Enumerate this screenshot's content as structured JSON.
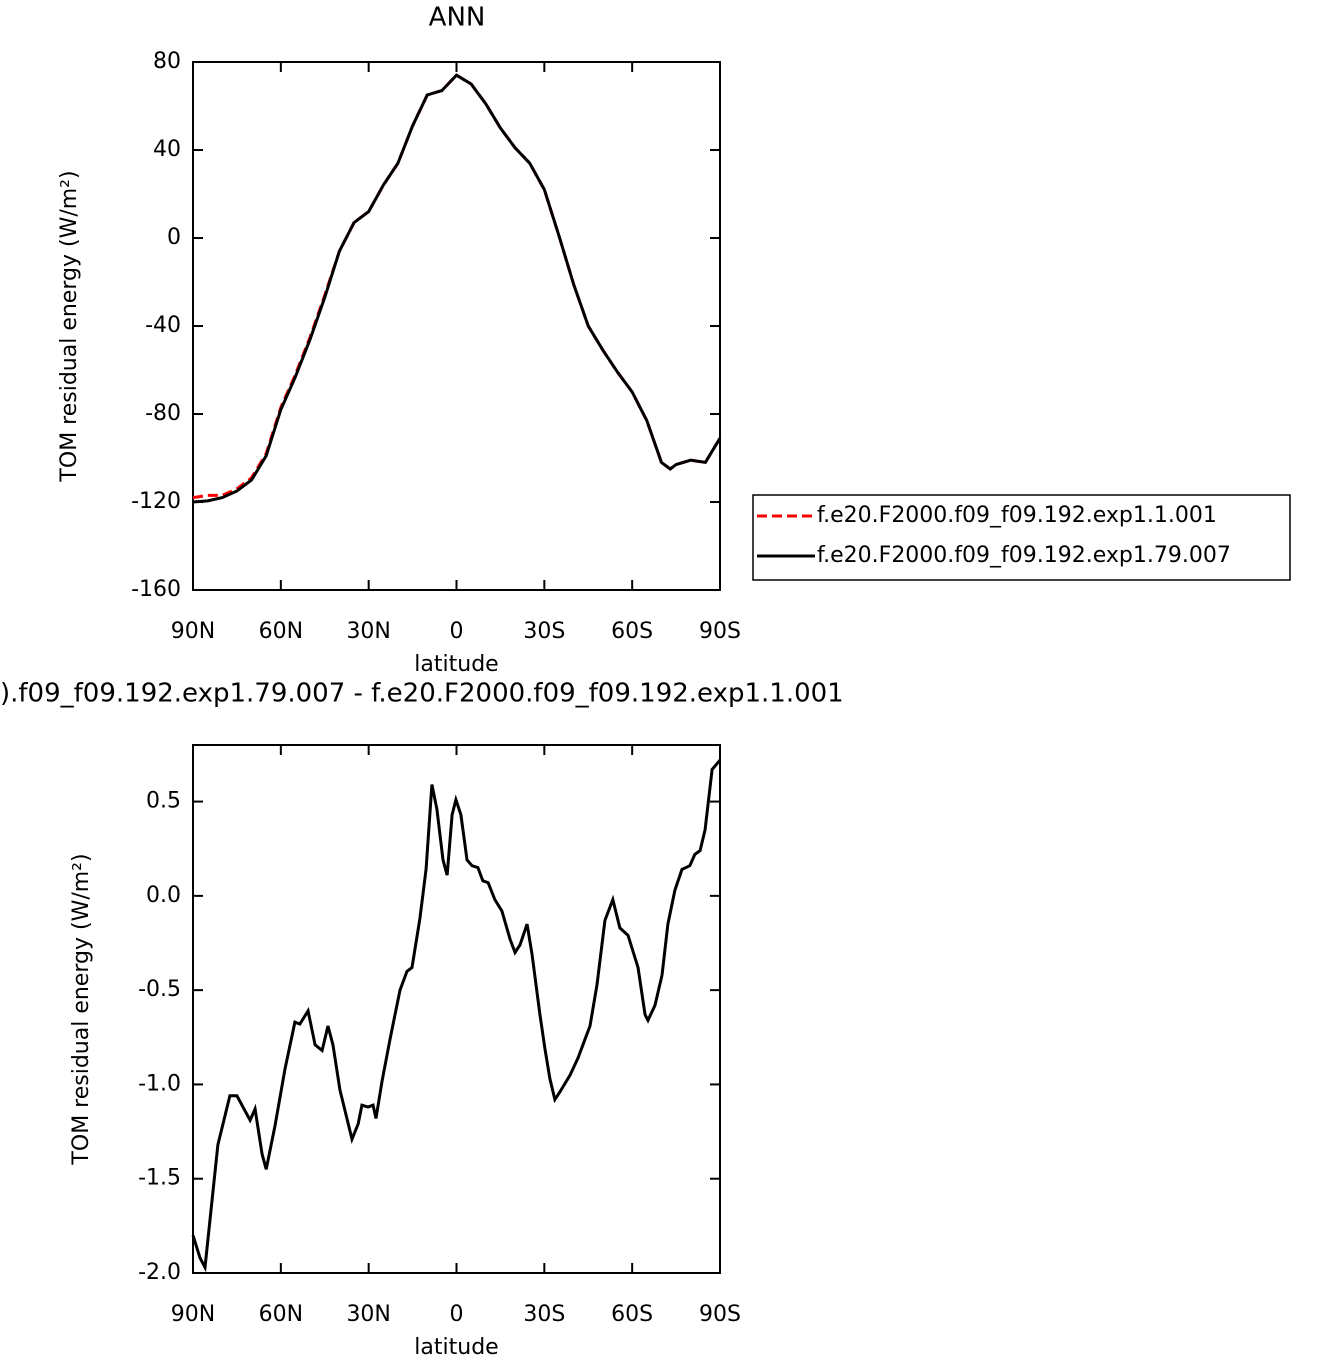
{
  "chart_data": [
    {
      "type": "line",
      "title": "ANN",
      "x_label": "latitude",
      "y_label": "TOM residual energy (W/m²)",
      "x": [
        90,
        85,
        80,
        75,
        70,
        65,
        60,
        55,
        50,
        45,
        40,
        35,
        30,
        25,
        20,
        15,
        10,
        5,
        0,
        -5,
        -10,
        -15,
        -20,
        -25,
        -30,
        -35,
        -40,
        -45,
        -50,
        -55,
        -60,
        -65,
        -70,
        -73,
        -75,
        -80,
        -85,
        -90
      ],
      "series": [
        {
          "name": "f.e20.F2000.f09_f09.192.exp1.1.001",
          "color": "#ff0000",
          "dashed": true,
          "values": [
            -118,
            -117,
            -117,
            -114,
            -109,
            -98,
            -77,
            -62,
            -45,
            -26,
            -6,
            7,
            12,
            24,
            34,
            51,
            65,
            67,
            74,
            70,
            61,
            50,
            41,
            34,
            22,
            1,
            -21,
            -40,
            -51,
            -61,
            -70,
            -83,
            -102,
            -105,
            -103,
            -101,
            -102,
            -91
          ]
        },
        {
          "name": "f.e20.F2000.f09_f09.192.exp1.79.007",
          "color": "#000000",
          "dashed": false,
          "values": [
            -120,
            -119.5,
            -118,
            -115,
            -110,
            -99,
            -78,
            -63,
            -46,
            -27,
            -6,
            7,
            12,
            24,
            34,
            51,
            65,
            67,
            74,
            70,
            61,
            50,
            41,
            34,
            22,
            1,
            -21,
            -40,
            -51,
            -61,
            -70,
            -83,
            -102,
            -105,
            -103,
            -101,
            -102,
            -91
          ]
        }
      ],
      "xlim": [
        90,
        -90
      ],
      "xticks": [
        {
          "value": 90,
          "label": "90N"
        },
        {
          "value": 60,
          "label": "60N"
        },
        {
          "value": 30,
          "label": "30N"
        },
        0,
        {
          "value": -30,
          "label": "30S"
        },
        {
          "value": -60,
          "label": "60S"
        },
        {
          "value": -90,
          "label": "90S"
        }
      ],
      "ylim": [
        -160,
        80
      ],
      "yticks": [
        -160,
        -120,
        -80,
        -40,
        0,
        40,
        80
      ],
      "legend": "right"
    },
    {
      "type": "line",
      "title": ").f09_f09.192.exp1.79.007 - f.e20.F2000.f09_f09.192.exp1.1.001",
      "x_label": "latitude",
      "y_label": "TOM residual energy (W/m²)",
      "x": [
        90,
        87.6,
        85.9,
        81.5,
        77.4,
        75,
        70.5,
        68.8,
        66.4,
        65,
        62,
        58.6,
        55.2,
        53.5,
        50.7,
        48.3,
        45.9,
        43.9,
        42.2,
        39.8,
        35.7,
        33.6,
        32.3,
        30.2,
        28.5,
        27.5,
        25.4,
        22.7,
        19.3,
        16.9,
        15.2,
        12.5,
        10.4,
        8.4,
        6.7,
        4.6,
        3.2,
        1.5,
        0.2,
        -1.5,
        -3.6,
        -5.3,
        -7.3,
        -9,
        -10.8,
        -13.1,
        -15.5,
        -18.3,
        -20,
        -21.7,
        -24.1,
        -25.8,
        -28.5,
        -30.2,
        -31.9,
        -33.6,
        -35.3,
        -38.8,
        -41.5,
        -43.9,
        -45.6,
        -48,
        -50.7,
        -53.4,
        -55.8,
        -58.6,
        -62,
        -64.4,
        -65.4,
        -67.8,
        -70.2,
        -72.2,
        -74.6,
        -77,
        -79.7,
        -81.4,
        -83.2,
        -84.9,
        -87.3,
        -90
      ],
      "series": [
        {
          "color": "#000000",
          "dashed": false,
          "values": [
            -1.8,
            -1.92,
            -1.97,
            -1.32,
            -1.06,
            -1.06,
            -1.19,
            -1.13,
            -1.37,
            -1.45,
            -1.22,
            -0.92,
            -0.67,
            -0.68,
            -0.61,
            -0.79,
            -0.82,
            -0.69,
            -0.79,
            -1.03,
            -1.29,
            -1.21,
            -1.11,
            -1.12,
            -1.11,
            -1.18,
            -0.98,
            -0.76,
            -0.5,
            -0.4,
            -0.38,
            -0.12,
            0.14,
            0.59,
            0.46,
            0.19,
            0.11,
            0.43,
            0.51,
            0.43,
            0.19,
            0.16,
            0.15,
            0.08,
            0.07,
            -0.02,
            -0.08,
            -0.23,
            -0.3,
            -0.26,
            -0.15,
            -0.31,
            -0.63,
            -0.81,
            -0.97,
            -1.08,
            -1.04,
            -0.95,
            -0.86,
            -0.76,
            -0.69,
            -0.47,
            -0.13,
            -0.02,
            -0.17,
            -0.21,
            -0.38,
            -0.63,
            -0.66,
            -0.58,
            -0.42,
            -0.15,
            0.03,
            0.14,
            0.16,
            0.22,
            0.24,
            0.35,
            0.67,
            0.72
          ]
        }
      ],
      "xlim": [
        90,
        -90
      ],
      "xticks": [
        {
          "value": 90,
          "label": "90N"
        },
        {
          "value": 60,
          "label": "60N"
        },
        {
          "value": 30,
          "label": "30N"
        },
        0,
        {
          "value": -30,
          "label": "30S"
        },
        {
          "value": -60,
          "label": "60S"
        },
        {
          "value": -90,
          "label": "90S"
        }
      ],
      "ylim": [
        -2,
        0.8
      ],
      "yticks": [
        {
          "value": -2,
          "label": "-2.0"
        },
        -1.5,
        {
          "value": -1,
          "label": "-1.0"
        },
        -0.5,
        {
          "value": 0,
          "label": "0.0"
        },
        0.5
      ]
    }
  ]
}
